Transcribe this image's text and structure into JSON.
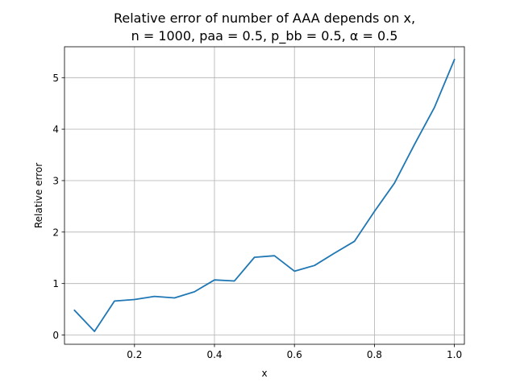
{
  "chart_data": {
    "type": "line",
    "title_line1": "Relative error of number of AAA depends on x,",
    "title_line2": "n = 1000, paa = 0.5, p_bb = 0.5, α = 0.5",
    "xlabel": "x",
    "ylabel": "Relative error",
    "xlim": [
      0.025,
      1.025
    ],
    "ylim": [
      -0.18,
      5.6
    ],
    "xticks": [
      0.2,
      0.4,
      0.6,
      0.8,
      1.0
    ],
    "xtick_labels": [
      "0.2",
      "0.4",
      "0.6",
      "0.8",
      "1.0"
    ],
    "yticks": [
      0,
      1,
      2,
      3,
      4,
      5
    ],
    "ytick_labels": [
      "0",
      "1",
      "2",
      "3",
      "4",
      "5"
    ],
    "grid": true,
    "series": [
      {
        "color": "#1f77b4",
        "x": [
          0.05,
          0.1,
          0.15,
          0.2,
          0.25,
          0.3,
          0.35,
          0.4,
          0.45,
          0.5,
          0.55,
          0.6,
          0.65,
          0.7,
          0.75,
          0.8,
          0.85,
          0.9,
          0.95,
          1.0
        ],
        "y": [
          0.48,
          0.07,
          0.66,
          0.69,
          0.75,
          0.72,
          0.84,
          1.07,
          1.05,
          1.51,
          1.54,
          1.24,
          1.35,
          1.59,
          1.82,
          2.4,
          2.95,
          3.7,
          4.42,
          5.35
        ]
      }
    ]
  }
}
